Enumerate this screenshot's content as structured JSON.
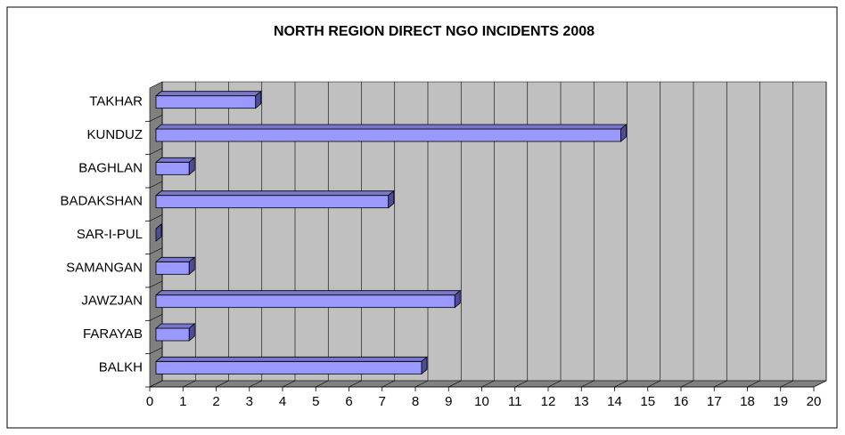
{
  "chart_data": {
    "type": "bar",
    "orientation": "horizontal",
    "title": "NORTH REGION DIRECT NGO INCIDENTS 2008",
    "categories": [
      "TAKHAR",
      "KUNDUZ",
      "BAGHLAN",
      "BADAKSHAN",
      "SAR-I-PUL",
      "SAMANGAN",
      "JAWZJAN",
      "FARAYAB",
      "BALKH"
    ],
    "values": [
      3,
      14,
      1,
      7,
      0,
      1,
      9,
      1,
      8
    ],
    "color": "#9999ff",
    "xlim": [
      0,
      20
    ],
    "xticks": [
      0,
      1,
      2,
      3,
      4,
      5,
      6,
      7,
      8,
      9,
      10,
      11,
      12,
      13,
      14,
      15,
      16,
      17,
      18,
      19,
      20
    ],
    "grid": true
  }
}
